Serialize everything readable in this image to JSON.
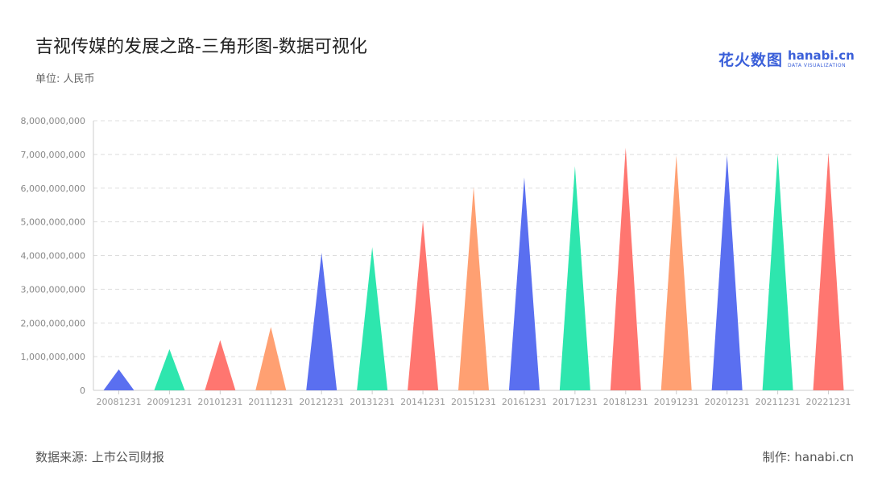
{
  "header": {
    "title": "吉视传媒的发展之路-三角形图-数据可视化",
    "unit": "单位: 人民币"
  },
  "logo": {
    "cn": "花火数图",
    "en": "hanabi.cn",
    "sub": "DATA VISUALIZATION"
  },
  "footer": {
    "source": "数据来源: 上市公司财报",
    "maker": "制作: hanabi.cn"
  },
  "chart_data": {
    "type": "bar",
    "shape": "triangle",
    "title": "吉视传媒的发展之路-三角形图-数据可视化",
    "ylabel": "单位: 人民币",
    "categories": [
      "20081231",
      "20091231",
      "20101231",
      "20111231",
      "20121231",
      "20131231",
      "20141231",
      "20151231",
      "20161231",
      "20171231",
      "20181231",
      "20191231",
      "20201231",
      "20211231",
      "20221231"
    ],
    "values": [
      620000000,
      1220000000,
      1490000000,
      1880000000,
      4080000000,
      4250000000,
      5040000000,
      6030000000,
      6320000000,
      6650000000,
      7200000000,
      6970000000,
      6980000000,
      7010000000,
      7050000000
    ],
    "ylim": [
      0,
      8000000000
    ],
    "yticks": [
      "0",
      "1,000,000,000",
      "2,000,000,000",
      "3,000,000,000",
      "4,000,000,000",
      "5,000,000,000",
      "6,000,000,000",
      "7,000,000,000",
      "8,000,000,000"
    ],
    "ytick_values": [
      0,
      1000000000,
      2000000000,
      3000000000,
      4000000000,
      5000000000,
      6000000000,
      7000000000,
      8000000000
    ],
    "colors": [
      "#5a6ff0",
      "#2ee6ae",
      "#ff7670",
      "#ffa072"
    ],
    "grid": true,
    "legend": "none"
  },
  "colors": {
    "axis": "#cccccc",
    "grid": "#dddddd"
  }
}
